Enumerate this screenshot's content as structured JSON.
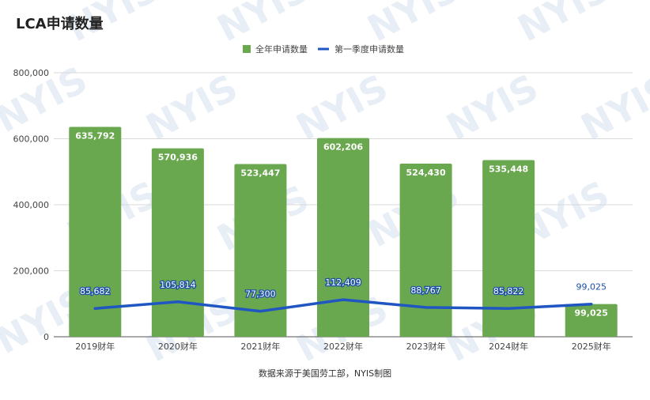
{
  "chart_data": {
    "type": "bar",
    "title": "LCA申请数量",
    "categories": [
      "2019财年",
      "2020财年",
      "2021财年",
      "2022财年",
      "2023财年",
      "2024财年",
      "2025财年"
    ],
    "series": [
      {
        "name": "全年申请数量",
        "kind": "bar",
        "color": "#6aa84f",
        "values": [
          635792,
          570936,
          523447,
          602206,
          524430,
          535448,
          99025
        ],
        "labels": [
          "635,792",
          "570,936",
          "523,447",
          "602,206",
          "524,430",
          "535,448",
          "99,025"
        ]
      },
      {
        "name": "第一季度申请数量",
        "kind": "line",
        "color": "#1f56c2",
        "values": [
          85682,
          105814,
          77300,
          112409,
          88767,
          85822,
          99025
        ],
        "labels": [
          "85,682",
          "105,814",
          "77,300",
          "112,409",
          "88,767",
          "85,822",
          "99,025"
        ]
      }
    ],
    "ylim": [
      0,
      800000
    ],
    "yticks": [
      0,
      200000,
      400000,
      600000,
      800000
    ],
    "ytick_labels": [
      "0",
      "200,000",
      "400,000",
      "600,000",
      "800,000"
    ],
    "grid": true,
    "legend": "top-center",
    "source": "数据来源于美国劳工部，NYIS制图",
    "watermark": "NYIS"
  }
}
